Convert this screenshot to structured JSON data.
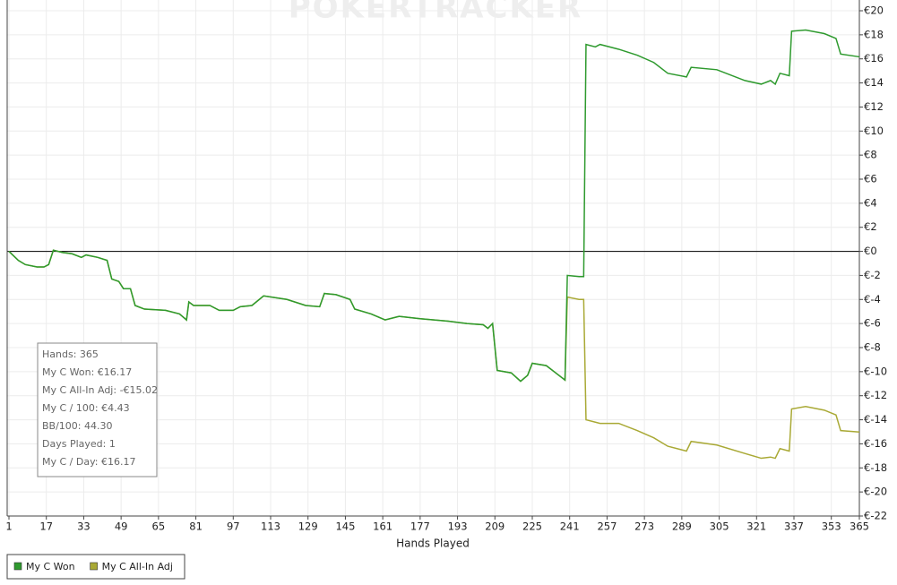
{
  "chart_data": {
    "type": "line",
    "watermark": "POKERTRACKER",
    "x_label": "Hands Played",
    "xlim": [
      1,
      365
    ],
    "xticks": [
      1,
      17,
      33,
      49,
      65,
      81,
      97,
      113,
      129,
      145,
      161,
      177,
      193,
      209,
      225,
      241,
      257,
      273,
      289,
      305,
      321,
      337,
      353,
      365
    ],
    "ylim": [
      -22,
      20
    ],
    "yticks": [
      {
        "value": 20,
        "label": "€20"
      },
      {
        "value": 18,
        "label": "€18"
      },
      {
        "value": 16,
        "label": "€16"
      },
      {
        "value": 14,
        "label": "€14"
      },
      {
        "value": 12,
        "label": "€12"
      },
      {
        "value": 10,
        "label": "€10"
      },
      {
        "value": 8,
        "label": "€8"
      },
      {
        "value": 6,
        "label": "€6"
      },
      {
        "value": 4,
        "label": "€4"
      },
      {
        "value": 2,
        "label": "€2"
      },
      {
        "value": 0,
        "label": "€0"
      },
      {
        "value": -2,
        "label": "€-2"
      },
      {
        "value": -4,
        "label": "€-4"
      },
      {
        "value": -6,
        "label": "€-6"
      },
      {
        "value": -8,
        "label": "€-8"
      },
      {
        "value": -10,
        "label": "€-10"
      },
      {
        "value": -12,
        "label": "€-12"
      },
      {
        "value": -14,
        "label": "€-14"
      },
      {
        "value": -16,
        "label": "€-16"
      },
      {
        "value": -18,
        "label": "€-18"
      },
      {
        "value": -20,
        "label": "€-20"
      },
      {
        "value": -22,
        "label": "€-22"
      }
    ],
    "grid": true,
    "x": [
      1,
      5,
      8,
      13,
      16,
      18,
      20,
      24,
      28,
      32,
      34,
      39,
      43,
      45,
      48,
      50,
      53,
      55,
      59,
      68,
      74,
      77,
      78,
      80,
      87,
      91,
      97,
      100,
      105,
      110,
      120,
      128,
      134,
      136,
      141,
      147,
      149,
      156,
      162,
      168,
      177,
      189,
      197,
      204,
      206,
      208,
      210,
      216,
      220,
      223,
      225,
      231,
      235,
      239,
      240,
      245,
      247,
      248,
      252,
      254,
      262,
      270,
      277,
      283,
      291,
      293,
      304,
      316,
      323,
      327,
      329,
      331,
      335,
      336,
      342,
      350,
      355,
      357,
      365
    ],
    "series": [
      {
        "name": "My C Won",
        "color": "#2e9a2e",
        "values": [
          0,
          -0.75,
          -1.1,
          -1.3,
          -1.3,
          -1.1,
          0.1,
          -0.1,
          -0.2,
          -0.5,
          -0.3,
          -0.5,
          -0.75,
          -2.3,
          -2.5,
          -3.1,
          -3.1,
          -4.5,
          -4.8,
          -4.9,
          -5.2,
          -5.7,
          -4.2,
          -4.5,
          -4.5,
          -4.9,
          -4.9,
          -4.6,
          -4.5,
          -3.7,
          -4.0,
          -4.5,
          -4.6,
          -3.5,
          -3.6,
          -4.0,
          -4.8,
          -5.2,
          -5.7,
          -5.4,
          -5.6,
          -5.8,
          -6.0,
          -6.1,
          -6.4,
          -6.0,
          -9.9,
          -10.1,
          -10.8,
          -10.3,
          -9.3,
          -9.5,
          -10.1,
          -10.7,
          -2.0,
          -2.1,
          -2.1,
          17.2,
          17.0,
          17.2,
          16.8,
          16.3,
          15.7,
          14.8,
          14.5,
          15.3,
          15.1,
          14.2,
          13.9,
          14.2,
          13.9,
          14.8,
          14.6,
          18.3,
          18.4,
          18.1,
          17.7,
          16.4,
          16.17
        ]
      },
      {
        "name": "My C All-In Adj",
        "color": "#a9a935",
        "values": [
          0,
          -0.75,
          -1.1,
          -1.3,
          -1.3,
          -1.1,
          0.1,
          -0.1,
          -0.2,
          -0.5,
          -0.3,
          -0.5,
          -0.75,
          -2.3,
          -2.5,
          -3.1,
          -3.1,
          -4.5,
          -4.8,
          -4.9,
          -5.2,
          -5.7,
          -4.2,
          -4.5,
          -4.5,
          -4.9,
          -4.9,
          -4.6,
          -4.5,
          -3.7,
          -4.0,
          -4.5,
          -4.6,
          -3.5,
          -3.6,
          -4.0,
          -4.8,
          -5.2,
          -5.7,
          -5.4,
          -5.6,
          -5.8,
          -6.0,
          -6.1,
          -6.4,
          -6.0,
          -9.9,
          -10.1,
          -10.8,
          -10.3,
          -9.3,
          -9.5,
          -10.1,
          -10.7,
          -3.8,
          -4.0,
          -4.0,
          -14.0,
          -14.2,
          -14.3,
          -14.3,
          -14.9,
          -15.5,
          -16.2,
          -16.6,
          -15.8,
          -16.1,
          -16.8,
          -17.2,
          -17.1,
          -17.2,
          -16.4,
          -16.6,
          -13.1,
          -12.9,
          -13.2,
          -13.6,
          -14.9,
          -15.02
        ]
      }
    ],
    "stats": [
      "Hands: 365",
      "My C Won: €16.17",
      "My C All-In Adj: -€15.02",
      "My C / 100: €4.43",
      "BB/100: 44.30",
      "Days Played: 1",
      "My C / Day: €16.17"
    ]
  }
}
